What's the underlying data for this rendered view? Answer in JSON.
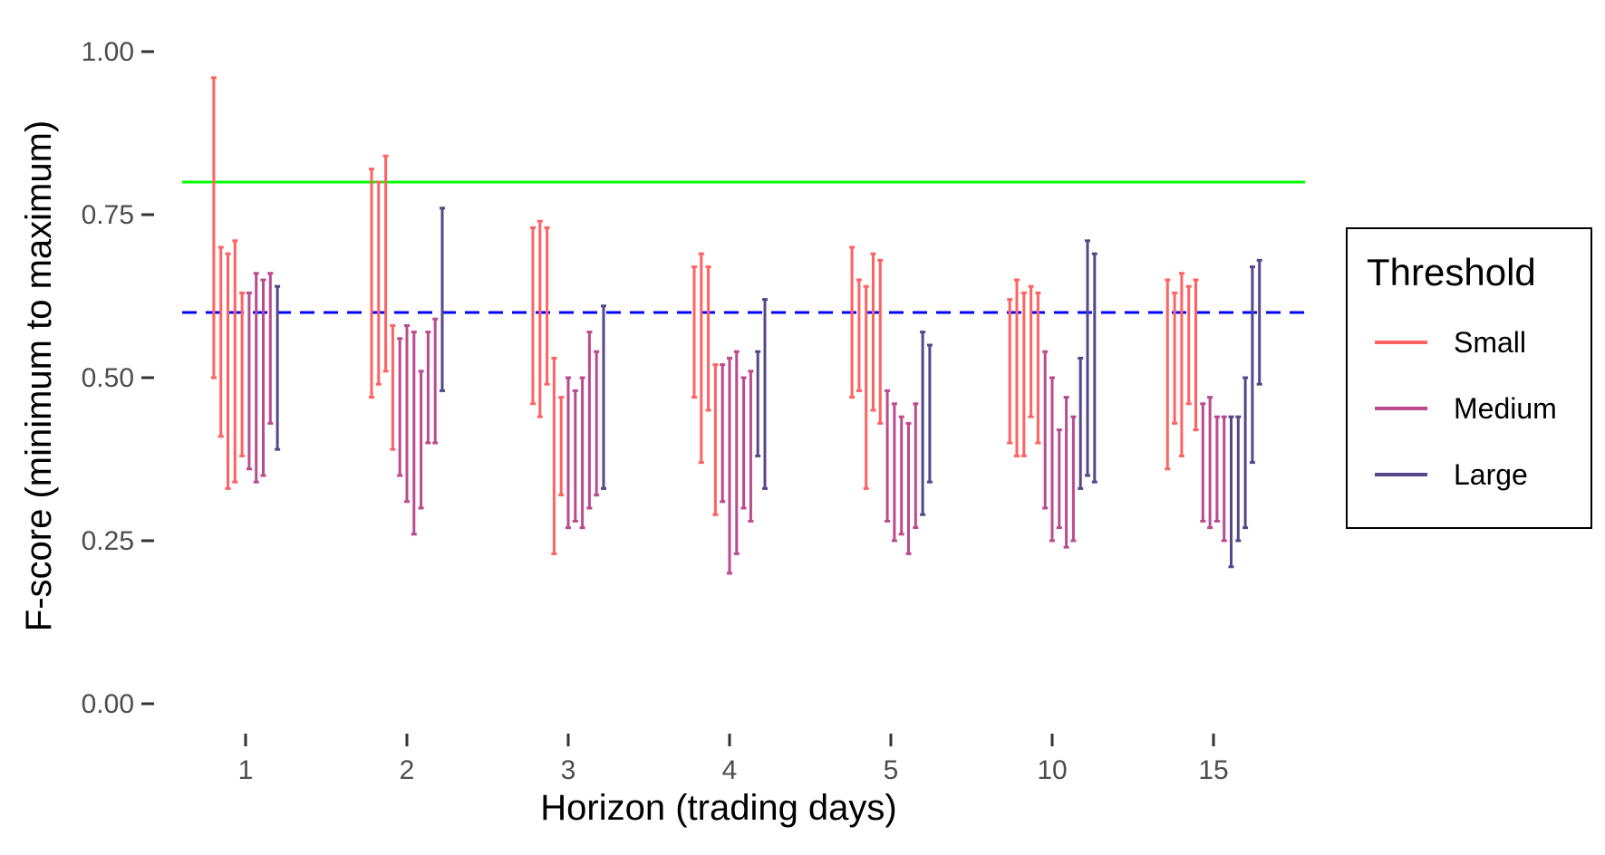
{
  "chart_data": {
    "type": "errorbar",
    "xlabel": "Horizon (trading days)",
    "ylabel": "F-score (minimum to maximum)",
    "categories": [
      "1",
      "2",
      "3",
      "4",
      "5",
      "10",
      "15"
    ],
    "yticks": [
      "0.00",
      "0.25",
      "0.50",
      "0.75",
      "1.00"
    ],
    "ylim": [
      0,
      1
    ],
    "legend": {
      "title": "Threshold",
      "position": "right",
      "entries": [
        {
          "name": "Small",
          "color": "#ff6262"
        },
        {
          "name": "Medium",
          "color": "#bb4a8e"
        },
        {
          "name": "Large",
          "color": "#55478a"
        }
      ]
    },
    "reference_lines": [
      {
        "y": 0.8,
        "style": "solid",
        "color": "#00ff00"
      },
      {
        "y": 0.6,
        "style": "dashed",
        "color": "#0000ff"
      }
    ],
    "series": [
      {
        "name": "Small",
        "color": "#ff6262",
        "ranges": [
          [
            [
              0.5,
              0.96
            ],
            [
              0.41,
              0.7
            ],
            [
              0.33,
              0.69
            ],
            [
              0.34,
              0.71
            ],
            [
              0.38,
              0.63
            ]
          ],
          [
            [
              0.47,
              0.82
            ],
            [
              0.49,
              0.8
            ],
            [
              0.51,
              0.84
            ],
            [
              0.39,
              0.58
            ]
          ],
          [
            [
              0.46,
              0.73
            ],
            [
              0.44,
              0.74
            ],
            [
              0.49,
              0.73
            ],
            [
              0.23,
              0.53
            ],
            [
              0.32,
              0.47
            ]
          ],
          [
            [
              0.47,
              0.67
            ],
            [
              0.37,
              0.69
            ],
            [
              0.45,
              0.67
            ],
            [
              0.29,
              0.52
            ]
          ],
          [
            [
              0.47,
              0.7
            ],
            [
              0.48,
              0.65
            ],
            [
              0.33,
              0.64
            ],
            [
              0.45,
              0.69
            ],
            [
              0.43,
              0.68
            ]
          ],
          [
            [
              0.4,
              0.62
            ],
            [
              0.38,
              0.65
            ],
            [
              0.38,
              0.63
            ],
            [
              0.44,
              0.64
            ],
            [
              0.4,
              0.63
            ]
          ],
          [
            [
              0.36,
              0.65
            ],
            [
              0.43,
              0.63
            ],
            [
              0.38,
              0.66
            ],
            [
              0.46,
              0.64
            ],
            [
              0.42,
              0.65
            ]
          ]
        ]
      },
      {
        "name": "Medium",
        "color": "#bb4a8e",
        "ranges": [
          [
            [
              0.36,
              0.63
            ],
            [
              0.34,
              0.66
            ],
            [
              0.35,
              0.65
            ],
            [
              0.43,
              0.66
            ]
          ],
          [
            [
              0.35,
              0.56
            ],
            [
              0.31,
              0.58
            ],
            [
              0.26,
              0.57
            ],
            [
              0.3,
              0.51
            ],
            [
              0.4,
              0.57
            ],
            [
              0.4,
              0.59
            ]
          ],
          [
            [
              0.27,
              0.5
            ],
            [
              0.28,
              0.48
            ],
            [
              0.27,
              0.5
            ],
            [
              0.3,
              0.57
            ],
            [
              0.32,
              0.54
            ]
          ],
          [
            [
              0.31,
              0.52
            ],
            [
              0.2,
              0.53
            ],
            [
              0.23,
              0.54
            ],
            [
              0.3,
              0.5
            ],
            [
              0.28,
              0.51
            ]
          ],
          [
            [
              0.28,
              0.48
            ],
            [
              0.25,
              0.46
            ],
            [
              0.26,
              0.44
            ],
            [
              0.23,
              0.43
            ],
            [
              0.27,
              0.46
            ]
          ],
          [
            [
              0.3,
              0.54
            ],
            [
              0.25,
              0.5
            ],
            [
              0.27,
              0.42
            ],
            [
              0.24,
              0.47
            ],
            [
              0.25,
              0.44
            ]
          ],
          [
            [
              0.28,
              0.46
            ],
            [
              0.27,
              0.47
            ],
            [
              0.28,
              0.44
            ],
            [
              0.25,
              0.44
            ]
          ]
        ]
      },
      {
        "name": "Large",
        "color": "#55478a",
        "ranges": [
          [
            [
              0.39,
              0.64
            ]
          ],
          [
            [
              0.48,
              0.76
            ]
          ],
          [
            [
              0.33,
              0.61
            ]
          ],
          [
            [
              0.38,
              0.54
            ],
            [
              0.33,
              0.62
            ]
          ],
          [
            [
              0.29,
              0.57
            ],
            [
              0.34,
              0.55
            ]
          ],
          [
            [
              0.33,
              0.53
            ],
            [
              0.35,
              0.71
            ],
            [
              0.34,
              0.69
            ]
          ],
          [
            [
              0.21,
              0.44
            ],
            [
              0.25,
              0.44
            ],
            [
              0.27,
              0.5
            ],
            [
              0.37,
              0.67
            ],
            [
              0.49,
              0.68
            ]
          ]
        ]
      }
    ]
  }
}
